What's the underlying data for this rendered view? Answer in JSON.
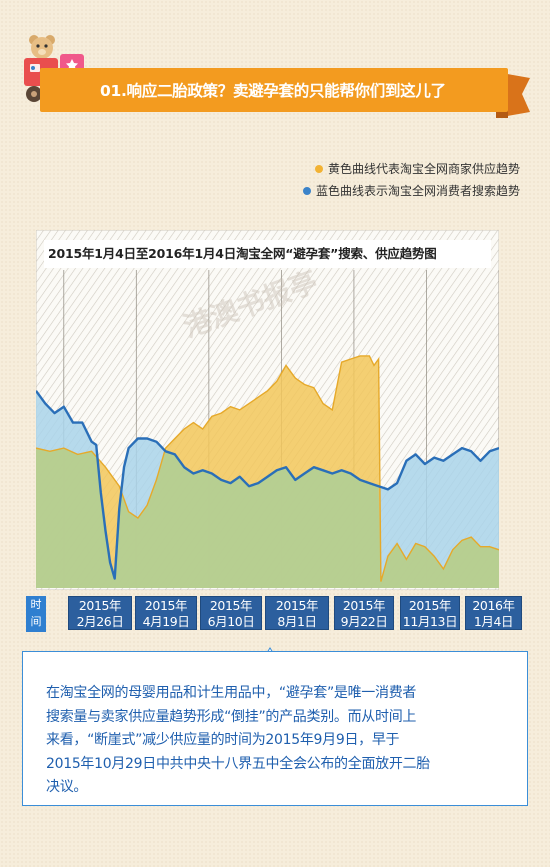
{
  "header": {
    "title": "01.响应二胎政策？卖避孕套的只能帮你们到这儿了"
  },
  "legend": [
    {
      "label": "黄色曲线代表淘宝全网商家供应趋势",
      "color": "#f2b233"
    },
    {
      "label": "蓝色曲线表示淘宝全网消费者搜索趋势",
      "color": "#3b83c9"
    }
  ],
  "chart_data": {
    "type": "area",
    "title": "2015年1月4日至2016年1月4日淘宝全网“避孕套”搜索、供应趋势图",
    "xlabel": "时间",
    "ylabel": "",
    "x_ticks": [
      {
        "year": "2015年",
        "day": "2月26日"
      },
      {
        "year": "2015年",
        "day": "4月19日"
      },
      {
        "year": "2015年",
        "day": "6月10日"
      },
      {
        "year": "2015年",
        "day": "8月1日"
      },
      {
        "year": "2015年",
        "day": "9月22日"
      },
      {
        "year": "2015年",
        "day": "11月13日"
      },
      {
        "year": "2016年",
        "day": "1月4日"
      }
    ],
    "x_range": [
      "2015-01-04",
      "2016-01-04"
    ],
    "y_range": [
      0,
      100
    ],
    "series": [
      {
        "name": "黄色曲线代表淘宝全网商家供应趋势",
        "color": "#f2b233",
        "points": [
          [
            0,
            44
          ],
          [
            3,
            43
          ],
          [
            6,
            44
          ],
          [
            9,
            42
          ],
          [
            12,
            43
          ],
          [
            15,
            38
          ],
          [
            18,
            32
          ],
          [
            20,
            24
          ],
          [
            22,
            22
          ],
          [
            24,
            26
          ],
          [
            26,
            34
          ],
          [
            28,
            44
          ],
          [
            30,
            47
          ],
          [
            32,
            50
          ],
          [
            34,
            52
          ],
          [
            36,
            50
          ],
          [
            38,
            54
          ],
          [
            40,
            55
          ],
          [
            42,
            57
          ],
          [
            44,
            56
          ],
          [
            46,
            58
          ],
          [
            48,
            60
          ],
          [
            50,
            62
          ],
          [
            52,
            65
          ],
          [
            54,
            70
          ],
          [
            56,
            66
          ],
          [
            58,
            64
          ],
          [
            60,
            63
          ],
          [
            62,
            58
          ],
          [
            64,
            56
          ],
          [
            66,
            71
          ],
          [
            68,
            72
          ],
          [
            70,
            73
          ],
          [
            71,
            73
          ],
          [
            72,
            73
          ],
          [
            73,
            70
          ],
          [
            74,
            72
          ],
          [
            74.5,
            2
          ],
          [
            76,
            10
          ],
          [
            78,
            14
          ],
          [
            80,
            9
          ],
          [
            82,
            14
          ],
          [
            84,
            13
          ],
          [
            86,
            10
          ],
          [
            88,
            6
          ],
          [
            90,
            12
          ],
          [
            92,
            15
          ],
          [
            94,
            16
          ],
          [
            96,
            13
          ],
          [
            98,
            13
          ],
          [
            100,
            12
          ]
        ]
      },
      {
        "name": "蓝色曲线表示淘宝全网消费者搜索趋势",
        "color": "#3b83c9",
        "points": [
          [
            0,
            62
          ],
          [
            2,
            58
          ],
          [
            4,
            55
          ],
          [
            6,
            57
          ],
          [
            8,
            52
          ],
          [
            10,
            52
          ],
          [
            12,
            46
          ],
          [
            13,
            45
          ],
          [
            14,
            30
          ],
          [
            15,
            18
          ],
          [
            16,
            8
          ],
          [
            17,
            3
          ],
          [
            18,
            25
          ],
          [
            19,
            38
          ],
          [
            20,
            44
          ],
          [
            22,
            47
          ],
          [
            24,
            47
          ],
          [
            26,
            46
          ],
          [
            28,
            43
          ],
          [
            30,
            42
          ],
          [
            32,
            38
          ],
          [
            34,
            36
          ],
          [
            36,
            37
          ],
          [
            38,
            36
          ],
          [
            40,
            34
          ],
          [
            42,
            33
          ],
          [
            44,
            35
          ],
          [
            46,
            32
          ],
          [
            48,
            33
          ],
          [
            50,
            35
          ],
          [
            52,
            37
          ],
          [
            54,
            38
          ],
          [
            56,
            34
          ],
          [
            58,
            36
          ],
          [
            60,
            38
          ],
          [
            62,
            37
          ],
          [
            64,
            36
          ],
          [
            66,
            37
          ],
          [
            68,
            36
          ],
          [
            70,
            34
          ],
          [
            72,
            33
          ],
          [
            74,
            32
          ],
          [
            76,
            31
          ],
          [
            78,
            33
          ],
          [
            80,
            40
          ],
          [
            82,
            42
          ],
          [
            84,
            39
          ],
          [
            86,
            41
          ],
          [
            88,
            40
          ],
          [
            90,
            42
          ],
          [
            92,
            44
          ],
          [
            94,
            43
          ],
          [
            96,
            40
          ],
          [
            98,
            43
          ],
          [
            100,
            44
          ]
        ]
      }
    ],
    "grid": true,
    "legend_position": "top-right"
  },
  "watermark": "港澳书报亭",
  "caption": [
    "在淘宝全网的母婴用品和计生用品中，“避孕套”是唯一消费者",
    "搜索量与卖家供应量趋势形成“倒挂”的产品类别。而从时间上",
    "来看，“断崖式”减少供应量的时间为2015年9月9日，早于",
    "2015年10月29日中共中央十八界五中全会公布的全面放开二胎",
    "决议。"
  ],
  "colors": {
    "banner": "#f39b1f",
    "tag_blue": "#2c5f9e",
    "accent_blue": "#2f7fd0",
    "caption_text": "#1f5fae"
  }
}
